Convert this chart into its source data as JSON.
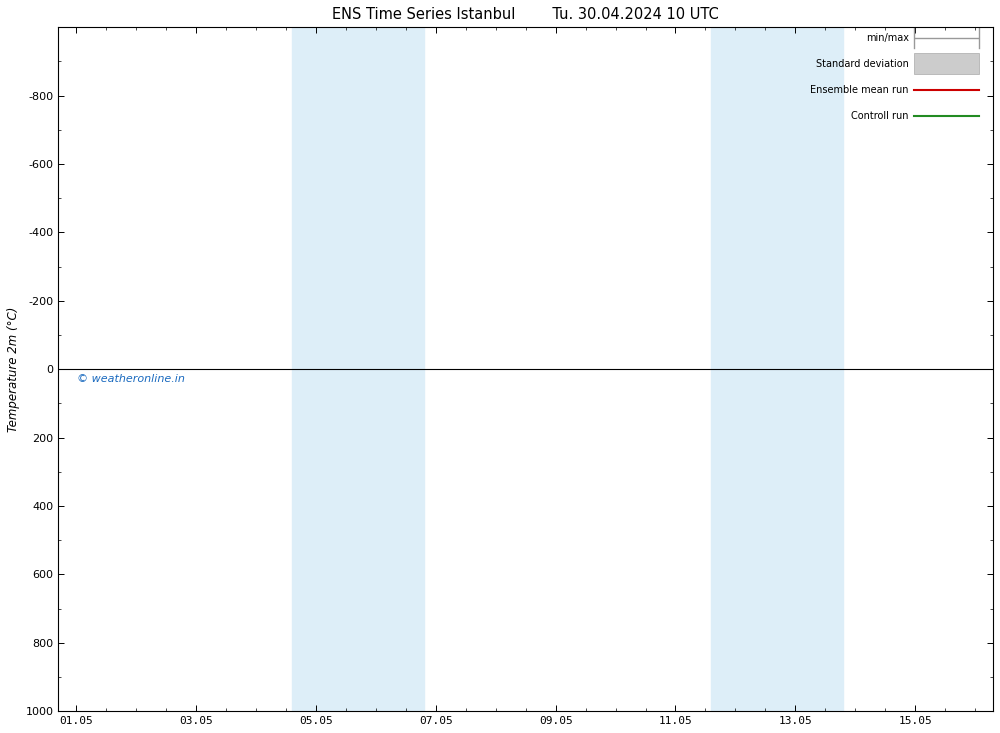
{
  "title_left": "ENS Time Series Istanbul",
  "title_right": "Tu. 30.04.2024 10 UTC",
  "ylabel": "Temperature 2m (°C)",
  "ylim_top": -1000,
  "ylim_bottom": 1000,
  "yticks": [
    -800,
    -600,
    -400,
    -200,
    0,
    200,
    400,
    600,
    800,
    1000
  ],
  "xtick_labels": [
    "01.05",
    "03.05",
    "05.05",
    "07.05",
    "09.05",
    "11.05",
    "13.05",
    "15.05"
  ],
  "xtick_positions": [
    0,
    2,
    4,
    6,
    8,
    10,
    12,
    14
  ],
  "xlim": [
    -0.3,
    15.3
  ],
  "shaded_bands": [
    {
      "x_start": 3.6,
      "x_end": 5.8,
      "color": "#ddeef8"
    },
    {
      "x_start": 10.6,
      "x_end": 12.8,
      "color": "#ddeef8"
    }
  ],
  "hline_y": 0,
  "hline_color": "#000000",
  "hline_lw": 0.8,
  "watermark": "© weatheronline.in",
  "watermark_color": "#1a6abf",
  "background_color": "#ffffff",
  "plot_bg_color": "#ffffff",
  "legend_items": [
    {
      "label": "min/max",
      "color": "#999999",
      "style": "minmax"
    },
    {
      "label": "Standard deviation",
      "color": "#cccccc",
      "style": "std"
    },
    {
      "label": "Ensemble mean run",
      "color": "#cc0000",
      "style": "line"
    },
    {
      "label": "Controll run",
      "color": "#228b22",
      "style": "line"
    }
  ],
  "title_fontsize": 10.5,
  "axis_label_fontsize": 8.5,
  "tick_fontsize": 8,
  "legend_fontsize": 7,
  "watermark_fontsize": 8
}
